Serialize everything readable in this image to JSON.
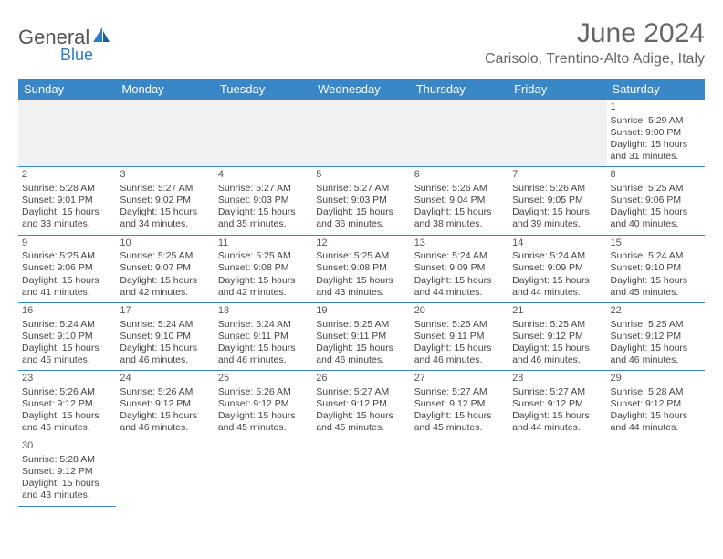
{
  "brand": {
    "part1": "General",
    "part2": "Blue"
  },
  "title": "June 2024",
  "location": "Carisolo, Trentino-Alto Adige, Italy",
  "colors": {
    "header_bg": "#3a87c8",
    "header_text": "#ffffff",
    "rule": "#3a87c8",
    "empty_bg": "#f1f1f1",
    "title_text": "#666666",
    "body_text": "#444444"
  },
  "weekdays": [
    "Sunday",
    "Monday",
    "Tuesday",
    "Wednesday",
    "Thursday",
    "Friday",
    "Saturday"
  ],
  "weeks": [
    [
      null,
      null,
      null,
      null,
      null,
      null,
      {
        "n": "1",
        "sunrise": "Sunrise: 5:29 AM",
        "sunset": "Sunset: 9:00 PM",
        "daylight": "Daylight: 15 hours and 31 minutes."
      }
    ],
    [
      {
        "n": "2",
        "sunrise": "Sunrise: 5:28 AM",
        "sunset": "Sunset: 9:01 PM",
        "daylight": "Daylight: 15 hours and 33 minutes."
      },
      {
        "n": "3",
        "sunrise": "Sunrise: 5:27 AM",
        "sunset": "Sunset: 9:02 PM",
        "daylight": "Daylight: 15 hours and 34 minutes."
      },
      {
        "n": "4",
        "sunrise": "Sunrise: 5:27 AM",
        "sunset": "Sunset: 9:03 PM",
        "daylight": "Daylight: 15 hours and 35 minutes."
      },
      {
        "n": "5",
        "sunrise": "Sunrise: 5:27 AM",
        "sunset": "Sunset: 9:03 PM",
        "daylight": "Daylight: 15 hours and 36 minutes."
      },
      {
        "n": "6",
        "sunrise": "Sunrise: 5:26 AM",
        "sunset": "Sunset: 9:04 PM",
        "daylight": "Daylight: 15 hours and 38 minutes."
      },
      {
        "n": "7",
        "sunrise": "Sunrise: 5:26 AM",
        "sunset": "Sunset: 9:05 PM",
        "daylight": "Daylight: 15 hours and 39 minutes."
      },
      {
        "n": "8",
        "sunrise": "Sunrise: 5:25 AM",
        "sunset": "Sunset: 9:06 PM",
        "daylight": "Daylight: 15 hours and 40 minutes."
      }
    ],
    [
      {
        "n": "9",
        "sunrise": "Sunrise: 5:25 AM",
        "sunset": "Sunset: 9:06 PM",
        "daylight": "Daylight: 15 hours and 41 minutes."
      },
      {
        "n": "10",
        "sunrise": "Sunrise: 5:25 AM",
        "sunset": "Sunset: 9:07 PM",
        "daylight": "Daylight: 15 hours and 42 minutes."
      },
      {
        "n": "11",
        "sunrise": "Sunrise: 5:25 AM",
        "sunset": "Sunset: 9:08 PM",
        "daylight": "Daylight: 15 hours and 42 minutes."
      },
      {
        "n": "12",
        "sunrise": "Sunrise: 5:25 AM",
        "sunset": "Sunset: 9:08 PM",
        "daylight": "Daylight: 15 hours and 43 minutes."
      },
      {
        "n": "13",
        "sunrise": "Sunrise: 5:24 AM",
        "sunset": "Sunset: 9:09 PM",
        "daylight": "Daylight: 15 hours and 44 minutes."
      },
      {
        "n": "14",
        "sunrise": "Sunrise: 5:24 AM",
        "sunset": "Sunset: 9:09 PM",
        "daylight": "Daylight: 15 hours and 44 minutes."
      },
      {
        "n": "15",
        "sunrise": "Sunrise: 5:24 AM",
        "sunset": "Sunset: 9:10 PM",
        "daylight": "Daylight: 15 hours and 45 minutes."
      }
    ],
    [
      {
        "n": "16",
        "sunrise": "Sunrise: 5:24 AM",
        "sunset": "Sunset: 9:10 PM",
        "daylight": "Daylight: 15 hours and 45 minutes."
      },
      {
        "n": "17",
        "sunrise": "Sunrise: 5:24 AM",
        "sunset": "Sunset: 9:10 PM",
        "daylight": "Daylight: 15 hours and 46 minutes."
      },
      {
        "n": "18",
        "sunrise": "Sunrise: 5:24 AM",
        "sunset": "Sunset: 9:11 PM",
        "daylight": "Daylight: 15 hours and 46 minutes."
      },
      {
        "n": "19",
        "sunrise": "Sunrise: 5:25 AM",
        "sunset": "Sunset: 9:11 PM",
        "daylight": "Daylight: 15 hours and 46 minutes."
      },
      {
        "n": "20",
        "sunrise": "Sunrise: 5:25 AM",
        "sunset": "Sunset: 9:11 PM",
        "daylight": "Daylight: 15 hours and 46 minutes."
      },
      {
        "n": "21",
        "sunrise": "Sunrise: 5:25 AM",
        "sunset": "Sunset: 9:12 PM",
        "daylight": "Daylight: 15 hours and 46 minutes."
      },
      {
        "n": "22",
        "sunrise": "Sunrise: 5:25 AM",
        "sunset": "Sunset: 9:12 PM",
        "daylight": "Daylight: 15 hours and 46 minutes."
      }
    ],
    [
      {
        "n": "23",
        "sunrise": "Sunrise: 5:26 AM",
        "sunset": "Sunset: 9:12 PM",
        "daylight": "Daylight: 15 hours and 46 minutes."
      },
      {
        "n": "24",
        "sunrise": "Sunrise: 5:26 AM",
        "sunset": "Sunset: 9:12 PM",
        "daylight": "Daylight: 15 hours and 46 minutes."
      },
      {
        "n": "25",
        "sunrise": "Sunrise: 5:26 AM",
        "sunset": "Sunset: 9:12 PM",
        "daylight": "Daylight: 15 hours and 45 minutes."
      },
      {
        "n": "26",
        "sunrise": "Sunrise: 5:27 AM",
        "sunset": "Sunset: 9:12 PM",
        "daylight": "Daylight: 15 hours and 45 minutes."
      },
      {
        "n": "27",
        "sunrise": "Sunrise: 5:27 AM",
        "sunset": "Sunset: 9:12 PM",
        "daylight": "Daylight: 15 hours and 45 minutes."
      },
      {
        "n": "28",
        "sunrise": "Sunrise: 5:27 AM",
        "sunset": "Sunset: 9:12 PM",
        "daylight": "Daylight: 15 hours and 44 minutes."
      },
      {
        "n": "29",
        "sunrise": "Sunrise: 5:28 AM",
        "sunset": "Sunset: 9:12 PM",
        "daylight": "Daylight: 15 hours and 44 minutes."
      }
    ],
    [
      {
        "n": "30",
        "sunrise": "Sunrise: 5:28 AM",
        "sunset": "Sunset: 9:12 PM",
        "daylight": "Daylight: 15 hours and 43 minutes."
      },
      null,
      null,
      null,
      null,
      null,
      null
    ]
  ]
}
